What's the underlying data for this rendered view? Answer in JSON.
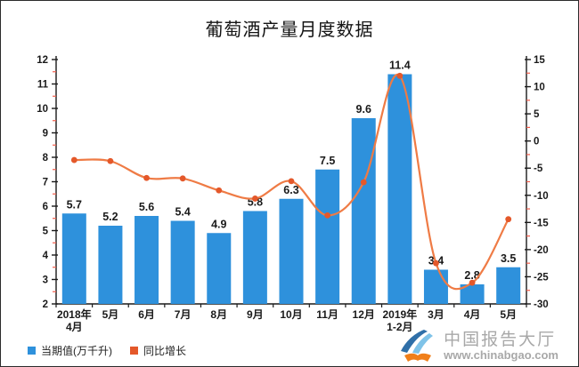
{
  "title": "葡萄酒产量月度数据",
  "chart_data": {
    "type": "bar",
    "subtype": "combo-bar-line-dual-axis",
    "categories": [
      "2018年\n4月",
      "5月",
      "6月",
      "7月",
      "8月",
      "9月",
      "10月",
      "11月",
      "12月",
      "2019年\n1-2月",
      "3月",
      "4月",
      "5月"
    ],
    "series": [
      {
        "name": "当期值(万千升)",
        "type": "bar",
        "axis": "left",
        "values": [
          5.7,
          5.2,
          5.6,
          5.4,
          4.9,
          5.8,
          6.3,
          7.5,
          9.6,
          11.4,
          3.4,
          2.8,
          3.5
        ],
        "data_labels": [
          5.7,
          5.2,
          5.6,
          5.4,
          4.9,
          5.8,
          6.3,
          7.5,
          9.6,
          11.4,
          3.4,
          2.8,
          3.5
        ],
        "color": "#2e91dc"
      },
      {
        "name": "同比增长",
        "type": "line",
        "axis": "right",
        "smooth": true,
        "values": [
          -3.5,
          -3.7,
          -6.8,
          -6.9,
          -9.1,
          -10.6,
          -7.4,
          -13.7,
          -7.6,
          12.0,
          -22.5,
          -26.1,
          -14.4
        ],
        "color": "#ef7b45",
        "marker_color": "#e4582a"
      }
    ],
    "left_axis": {
      "min": 2,
      "max": 12,
      "step": 1,
      "ticks": [
        2,
        3,
        4,
        5,
        6,
        7,
        8,
        9,
        10,
        11,
        12
      ]
    },
    "right_axis": {
      "min": -30,
      "max": 15,
      "step": 5,
      "ticks": [
        -30,
        -25,
        -20,
        -15,
        -10,
        -5,
        0,
        5,
        10,
        15
      ]
    },
    "grid": false,
    "legend_position": "bottom-left",
    "colors": {
      "axis_line": "#1a1a1a",
      "minor_tick": "#f25c4a",
      "label_text": "#1a1a1a"
    }
  },
  "legend": {
    "bars": {
      "label": "当期值(万千升)",
      "color": "#2e91dc"
    },
    "line": {
      "label": "同比增长",
      "color": "#e4582a"
    }
  },
  "watermark": {
    "brand": "中国报告大厅",
    "site": "www.chinabgao.com"
  }
}
